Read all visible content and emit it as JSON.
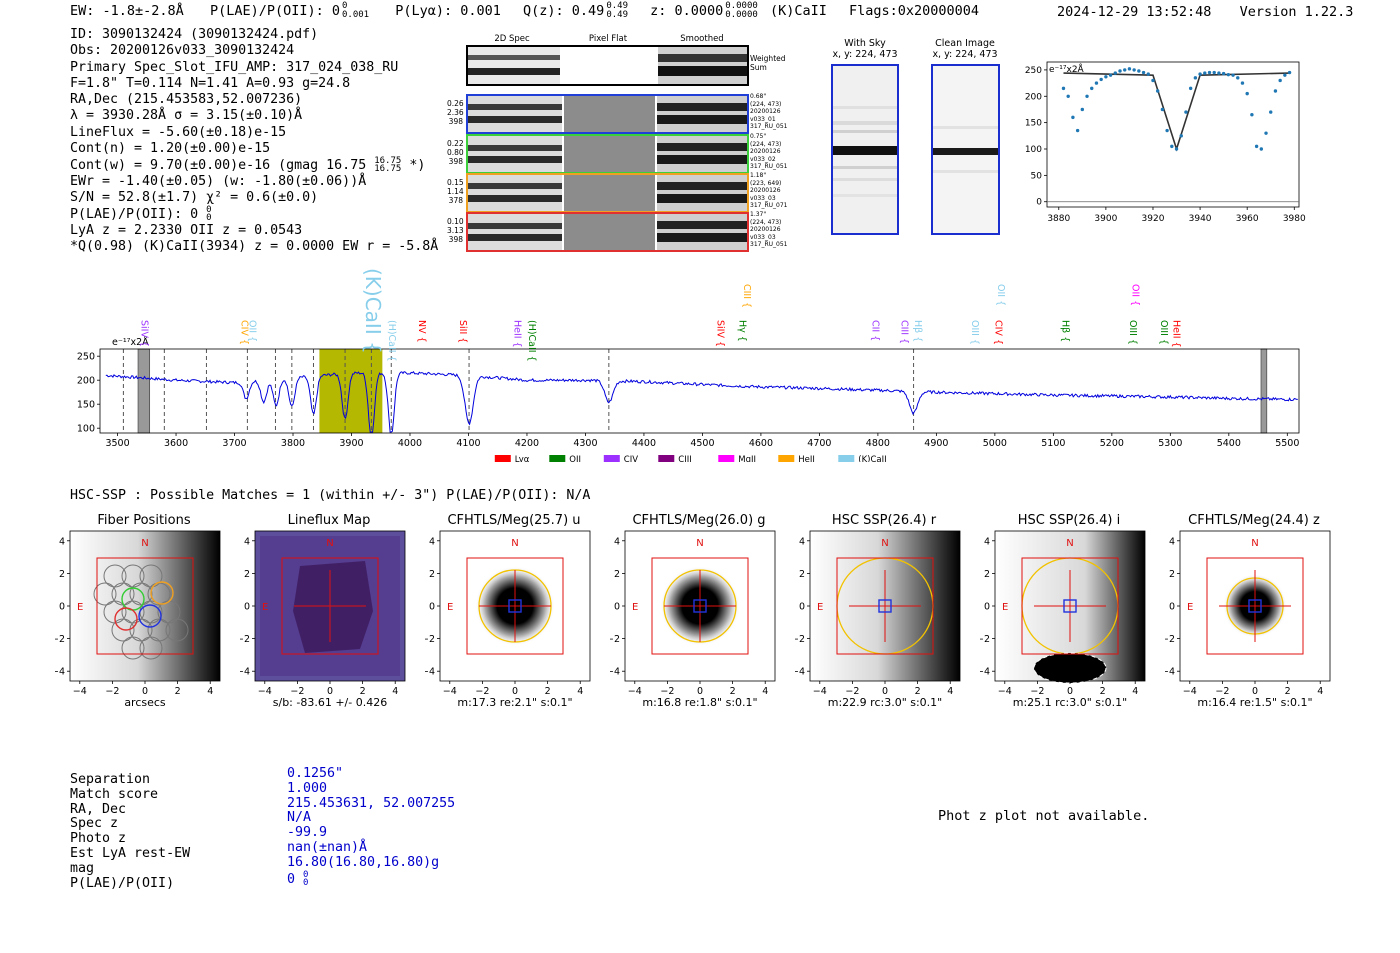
{
  "header": {
    "ew": "EW: -1.8±-2.8Å",
    "plae_label": "P(LAE)/P(OII): 0",
    "plae_sup": "0",
    "plae_sub": "0.001",
    "plya": "P(Lyα): 0.001",
    "qz": "Q(z): 0.49",
    "qz_sup": "0.49",
    "qz_sub": "0.49",
    "z": "z: 0.0000",
    "z_sup": "0.0000",
    "z_sub": "0.0000",
    "zline": "(K)CaII",
    "flags": "Flags:0x20000004",
    "timestamp": "2024-12-29 13:52:48",
    "version": "Version 1.22.3"
  },
  "info": {
    "lines": [
      "ID: 3090132424 (3090132424.pdf)",
      "Obs: 20200126v033_3090132424",
      "Primary Spec_Slot_IFU_AMP: 317_024_038_RU",
      "F=1.8\"  T=0.114  N=1.41  A=0.93  g=24.8",
      "RA,Dec (215.453583,52.007236)",
      "λ = 3930.28Å  σ = 3.15(±0.10)Å",
      "LineFlux = -5.60(±0.18)e-15",
      "Cont(n) = 1.20(±0.00)e-15",
      "Cont(w) = 9.70(±0.00)e-16 (gmag 16.75",
      "EWr = -1.40(±0.05) (w: -1.80(±0.06))Å",
      "S/N = 52.8(±1.7)  χ² = 0.6(±0.0)",
      "P(LAE)/P(OII): 0",
      "LyA z = 2.2330  OII z = 0.0543",
      "*Q(0.98) (K)CaII(3934) z = 0.0000  EW r = -5.8Å"
    ],
    "gmag_sup": "16.75",
    "gmag_sub": "16.75",
    "gmag_tail": " *)",
    "plae_sup": "0",
    "plae_sub": "0"
  },
  "stamps": {
    "col_titles": [
      "2D Spec",
      "Pixel Flat",
      "Smoothed"
    ],
    "weighted_label": "Weighted Sum",
    "rows": [
      {
        "left": [
          "0.26",
          "2.36",
          "398"
        ],
        "right": [
          "0.68\"",
          "(224, 473)",
          "20200126",
          "v033_01",
          "317_RU_051"
        ],
        "color": "#1f3fd6"
      },
      {
        "left": [
          "0.22",
          "0.80",
          "398"
        ],
        "right": [
          "0.75\"",
          "(224, 473)",
          "20200126",
          "v033_02",
          "317_RU_051"
        ],
        "color": "#3ccf3c"
      },
      {
        "left": [
          "0.15",
          "1.14",
          "378"
        ],
        "right": [
          "1.18\"",
          "(223, 649)",
          "20200126",
          "v033_03",
          "317_RU_071"
        ],
        "color": "#f0a020"
      },
      {
        "left": [
          "0.10",
          "3.13",
          "398"
        ],
        "right": [
          "1.37\"",
          "(224, 473)",
          "20200126",
          "v033_03",
          "317_RU_051"
        ],
        "color": "#e03030"
      }
    ]
  },
  "sky_panels": {
    "with_sky": "With Sky",
    "with_sky_xy": "x, y: 224, 473",
    "clean": "Clean Image",
    "clean_xy": "x, y: 224, 473"
  },
  "hsc_line": "HSC-SSP : Possible Matches = 1 (within +/- 3\")  P(LAE)/P(OII): N/A",
  "cutouts": [
    {
      "title": "Fiber Positions",
      "caption": "arcsecs"
    },
    {
      "title": "Lineflux Map",
      "caption": "s/b: -83.61 +/- 0.426"
    },
    {
      "title": "CFHTLS/Meg(25.7) u",
      "caption": "m:17.3  re:2.1\"  s:0.1\""
    },
    {
      "title": "CFHTLS/Meg(26.0) g",
      "caption": "m:16.8  re:1.8\"  s:0.1\""
    },
    {
      "title": "HSC SSP(26.4) r",
      "caption": "m:22.9 rc:3.0\"  s:0.1\""
    },
    {
      "title": "HSC SSP(26.4) i",
      "caption": "m:25.1 rc:3.0\"  s:0.1\""
    },
    {
      "title": "CFHTLS/Meg(24.4) z",
      "caption": "m:16.4  re:1.5\"  s:0.1\""
    }
  ],
  "cutout_axis": {
    "ticks": [
      "−4",
      "−2",
      "0",
      "2",
      "4"
    ],
    "north": "N",
    "east": "E"
  },
  "match": {
    "labels": [
      "Separation",
      "Match score",
      "RA, Dec",
      "Spec z",
      "Photo z",
      "Est LyA rest-EW",
      "mag",
      "P(LAE)/P(OII)"
    ],
    "values": [
      "0.1256\"",
      "1.000",
      "215.453631, 52.007255",
      "N/A",
      "-99.9",
      "nan(±nan)Å",
      "16.80(16.80,16.80)g",
      "0"
    ],
    "plae_sup": "0",
    "plae_sub": "0"
  },
  "photz_msg": "Phot z plot not available.",
  "colors": {
    "spectrum": "#0000dd",
    "fit_points": "#1f77b4",
    "fit_line": "#333333",
    "highlight": "#b5b800"
  },
  "chart_data": [
    {
      "type": "scatter",
      "title": "",
      "unit_label": "e⁻¹⁷x2Å",
      "x": [
        3882,
        3884,
        3886,
        3888,
        3890,
        3892,
        3894,
        3896,
        3898,
        3900,
        3902,
        3904,
        3906,
        3908,
        3910,
        3912,
        3914,
        3916,
        3918,
        3920,
        3922,
        3924,
        3926,
        3928,
        3930,
        3932,
        3934,
        3936,
        3938,
        3940,
        3942,
        3944,
        3946,
        3948,
        3950,
        3952,
        3954,
        3956,
        3958,
        3960,
        3962,
        3964,
        3966,
        3968,
        3970,
        3972,
        3974,
        3976,
        3978
      ],
      "y": [
        215,
        200,
        160,
        135,
        175,
        200,
        215,
        225,
        232,
        237,
        240,
        244,
        248,
        250,
        252,
        250,
        248,
        245,
        242,
        230,
        210,
        175,
        135,
        105,
        100,
        125,
        170,
        215,
        235,
        242,
        244,
        245,
        245,
        244,
        243,
        241,
        240,
        235,
        225,
        205,
        165,
        105,
        100,
        130,
        170,
        210,
        230,
        240,
        245
      ],
      "line": {
        "x": [
          3882,
          3920,
          3930,
          3940,
          3978
        ],
        "y": [
          244,
          240,
          100,
          240,
          244
        ]
      },
      "xlim": [
        3875,
        3982
      ],
      "ylim": [
        -10,
        265
      ],
      "xticks": [
        3880,
        3900,
        3920,
        3940,
        3960,
        3980
      ],
      "yticks": [
        0,
        50,
        100,
        150,
        200,
        250
      ]
    },
    {
      "type": "line",
      "unit_label": "e⁻¹⁷x2Å",
      "xlim": [
        3470,
        5520
      ],
      "ylim": [
        90,
        265
      ],
      "xticks": [
        3500,
        3600,
        3700,
        3800,
        3900,
        4000,
        4100,
        4200,
        4300,
        4400,
        4500,
        4600,
        4700,
        4800,
        4900,
        5000,
        5100,
        5200,
        5300,
        5400,
        5500
      ],
      "yticks": [
        100,
        150,
        200,
        250
      ],
      "continuum": {
        "x": [
          3480,
          3600,
          3700,
          3800,
          3900,
          4000,
          4100,
          4200,
          4300,
          4400,
          4500,
          4600,
          4700,
          4800,
          4900,
          5000,
          5100,
          5200,
          5300,
          5400,
          5500
        ],
        "y": [
          210,
          200,
          195,
          205,
          215,
          215,
          210,
          200,
          200,
          197,
          191,
          186,
          183,
          179,
          175,
          172,
          169,
          167,
          165,
          162,
          160
        ]
      },
      "absorption_lines": [
        {
          "x": 3720,
          "depth": 35
        },
        {
          "x": 3750,
          "depth": 45
        },
        {
          "x": 3771,
          "depth": 55
        },
        {
          "x": 3798,
          "depth": 60
        },
        {
          "x": 3835,
          "depth": 80
        },
        {
          "x": 3889,
          "depth": 95
        },
        {
          "x": 3934,
          "depth": 135
        },
        {
          "x": 3968,
          "depth": 130
        },
        {
          "x": 4101,
          "depth": 100
        },
        {
          "x": 4340,
          "depth": 45
        },
        {
          "x": 4861,
          "depth": 45
        }
      ],
      "highlight_range": [
        3905,
        3975
      ],
      "masked_ranges": [
        [
          3535,
          3555
        ],
        [
          5455,
          5465
        ]
      ],
      "dashed_lines": [
        3510,
        3580,
        3652,
        3722,
        3770,
        3798,
        3835,
        3889,
        3934,
        3968,
        4101,
        4340,
        4861
      ],
      "line_labels": [
        {
          "x": 3545,
          "text": "SiIV",
          "color": "#9b30ff"
        },
        {
          "x": 3716,
          "text": "CIV",
          "color": "#ffa500"
        },
        {
          "x": 3730,
          "text": "OII",
          "color": "#87ceeb"
        },
        {
          "x": 3934,
          "text": "(K)CaII",
          "color": "#87ceeb",
          "big": true
        },
        {
          "x": 3968,
          "text": "(H)CaII",
          "color": "#87ceeb"
        },
        {
          "x": 4020,
          "text": "NV",
          "color": "#ff0000"
        },
        {
          "x": 4090,
          "text": "SiII",
          "color": "#ff0000"
        },
        {
          "x": 4183,
          "text": "HeII",
          "color": "#9b30ff"
        },
        {
          "x": 4208,
          "text": "(H)CaII",
          "color": "#008000"
        },
        {
          "x": 4530,
          "text": "SiIV",
          "color": "#ff0000"
        },
        {
          "x": 4568,
          "text": "Hγ",
          "color": "#008000"
        },
        {
          "x": 4575,
          "text": "CIII",
          "color": "#ffa500",
          "high": true
        },
        {
          "x": 4795,
          "text": "CII",
          "color": "#9b30ff"
        },
        {
          "x": 4845,
          "text": "CIII",
          "color": "#9b30ff"
        },
        {
          "x": 4868,
          "text": "Hβ",
          "color": "#87ceeb"
        },
        {
          "x": 4965,
          "text": "OIII",
          "color": "#87ceeb"
        },
        {
          "x": 5005,
          "text": "CIV",
          "color": "#ff0000"
        },
        {
          "x": 5010,
          "text": "OII",
          "color": "#87ceeb",
          "high": true
        },
        {
          "x": 5120,
          "text": "Hβ",
          "color": "#008000"
        },
        {
          "x": 5235,
          "text": "OIII",
          "color": "#008000"
        },
        {
          "x": 5240,
          "text": "OII",
          "color": "#ff00ff",
          "high": true
        },
        {
          "x": 5288,
          "text": "OIII",
          "color": "#008000"
        },
        {
          "x": 5310,
          "text": "HeII",
          "color": "#ff0000"
        }
      ],
      "legend": [
        {
          "text": "Lyα",
          "color": "#ff0000"
        },
        {
          "text": "OII",
          "color": "#008000"
        },
        {
          "text": "CIV",
          "color": "#9b30ff"
        },
        {
          "text": "CIII",
          "color": "#800080"
        },
        {
          "text": "MgII",
          "color": "#ff00ff"
        },
        {
          "text": "HeII",
          "color": "#ffa500"
        },
        {
          "text": "(K)CaII",
          "color": "#87ceeb"
        }
      ]
    }
  ]
}
